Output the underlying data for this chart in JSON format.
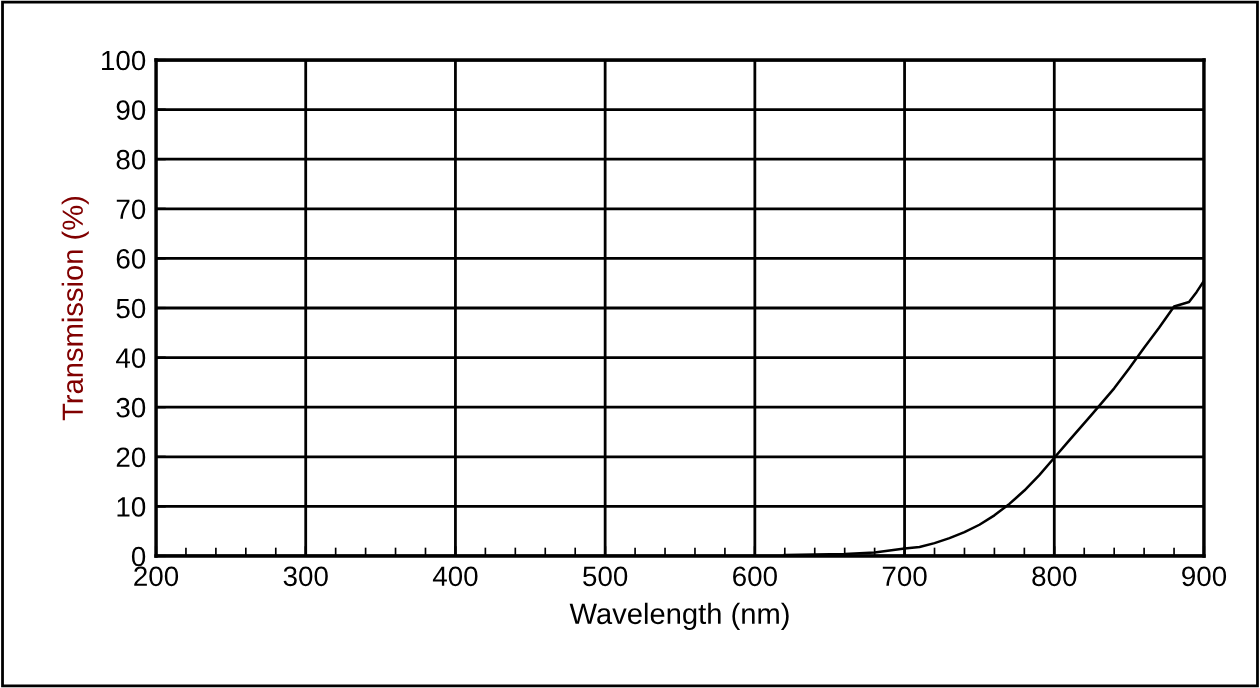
{
  "chart_data": {
    "type": "line",
    "xlabel": "Wavelength (nm)",
    "ylabel": "Transmission (%)",
    "x": [
      620,
      640,
      660,
      680,
      700,
      710,
      720,
      730,
      740,
      750,
      760,
      770,
      780,
      790,
      800,
      810,
      825,
      840,
      850,
      860,
      870,
      880,
      890,
      895,
      900
    ],
    "series": [
      {
        "color": "#000000",
        "values": [
          0.2,
          0.3,
          0.4,
          0.7,
          1.5,
          1.8,
          2.6,
          3.6,
          4.8,
          6.3,
          8.2,
          10.5,
          13.2,
          16.3,
          19.8,
          23.3,
          28.5,
          33.8,
          37.8,
          42.0,
          46.0,
          50.3,
          51.2,
          53.2,
          55.5
        ]
      }
    ],
    "xlim": [
      200,
      900
    ],
    "xticks": [
      200,
      300,
      400,
      500,
      600,
      700,
      800,
      900
    ],
    "ylim": [
      0,
      100
    ],
    "yticks": [
      0,
      10,
      20,
      30,
      40,
      50,
      60,
      70,
      80,
      90,
      100
    ],
    "grid": true,
    "legend": false,
    "marker": "none",
    "line_style": "solid"
  }
}
